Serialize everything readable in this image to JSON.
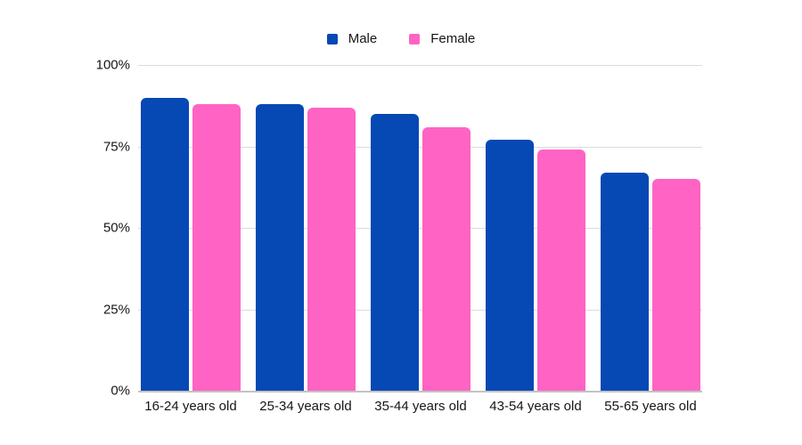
{
  "chart_data": {
    "type": "bar",
    "title": "",
    "categories": [
      "16-24 years old",
      "25-34 years old",
      "35-44 years old",
      "43-54 years old",
      "55-65 years old"
    ],
    "series": [
      {
        "name": "Male",
        "color": "#0648b4",
        "values": [
          90,
          88,
          85,
          77,
          67
        ]
      },
      {
        "name": "Female",
        "color": "#ff63c3",
        "values": [
          88,
          87,
          81,
          74,
          65
        ]
      }
    ],
    "xlabel": "",
    "ylabel": "",
    "ylim": [
      0,
      100
    ],
    "yticks": [
      0,
      25,
      50,
      75,
      100
    ],
    "ytick_labels": [
      "0%",
      "25%",
      "50%",
      "75%",
      "100%"
    ],
    "grid": true,
    "legend_position": "top-center",
    "background_color": "#ffffff",
    "gridline_color": "#dcdcdc",
    "axis_line_color": "#c3c3c3",
    "text_color": "#161616"
  }
}
